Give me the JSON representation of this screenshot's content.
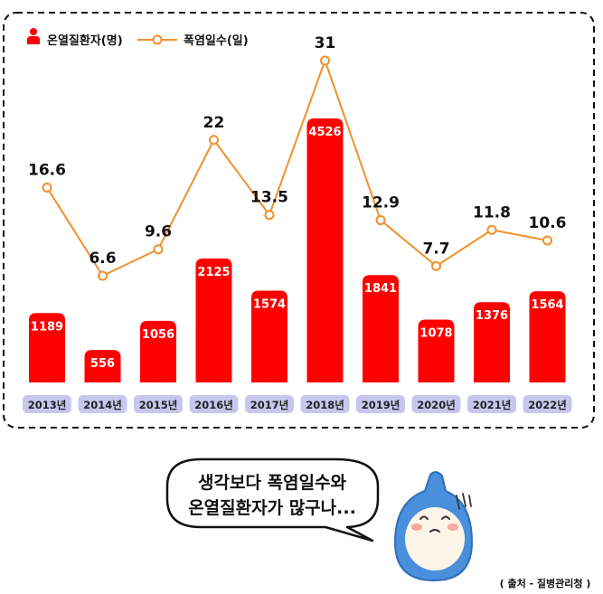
{
  "chart_data": {
    "type": "bar",
    "categories": [
      "2013년",
      "2014년",
      "2015년",
      "2016년",
      "2017년",
      "2018년",
      "2019년",
      "2020년",
      "2021년",
      "2022년"
    ],
    "series": [
      {
        "name": "온열질환자(명)",
        "type": "bar",
        "color": "#ff0000",
        "values": [
          1189,
          556,
          1056,
          2125,
          1574,
          4526,
          1841,
          1078,
          1376,
          1564
        ]
      },
      {
        "name": "폭염일수(일)",
        "type": "line",
        "color": "#f0902a",
        "values": [
          16.6,
          6.6,
          9.6,
          22,
          13.5,
          31,
          12.9,
          7.7,
          11.8,
          10.6
        ],
        "labels": [
          "16.6",
          "6.6",
          "9.6",
          "22",
          "13.5",
          "31",
          "12.9",
          "7.7",
          "11.8",
          "10.6"
        ]
      }
    ],
    "legend_position": "top-left",
    "grid": false,
    "category_pill_color": "#c9c6ee"
  },
  "caption": {
    "line1": "생각보다 폭염일수와",
    "line2": "온열질환자가 많구나..."
  },
  "source": "( 출처 - 질병관리청 )",
  "mascot": {
    "body_color": "#4a8fdc",
    "face_color": "#fdf4e8",
    "cheek_color": "#f7a8a0"
  }
}
